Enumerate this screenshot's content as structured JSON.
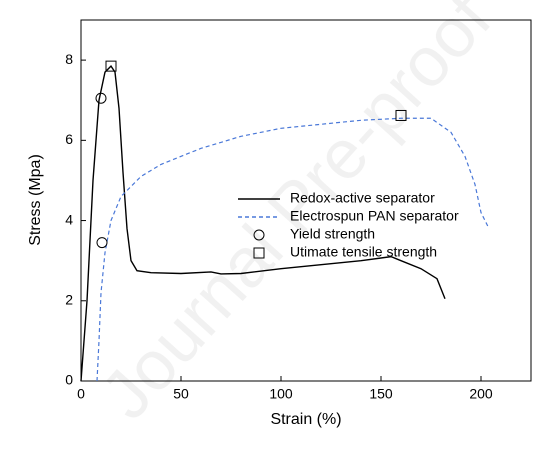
{
  "chart_data": {
    "type": "line",
    "watermark": "Journal Pre-proof",
    "x_label": "Strain (%)",
    "y_label": "Stress (Mpa)",
    "xlim": [
      0,
      225
    ],
    "xticks": [
      0,
      50,
      100,
      150,
      200
    ],
    "ylim": [
      0,
      9
    ],
    "yticks": [
      0,
      2,
      4,
      6,
      8
    ],
    "series": [
      {
        "name": "Redox-active separator",
        "color": "#000000",
        "style": "solid",
        "marker": "none",
        "x": [
          0,
          3,
          6,
          9,
          12,
          15,
          17,
          19,
          21,
          23,
          25,
          28,
          35,
          50,
          65,
          70,
          80,
          100,
          120,
          140,
          155,
          160,
          170,
          178,
          182
        ],
        "values": [
          0,
          2,
          5,
          7,
          7.7,
          7.85,
          7.7,
          6.8,
          5.2,
          3.8,
          3.0,
          2.75,
          2.7,
          2.68,
          2.72,
          2.67,
          2.68,
          2.8,
          2.9,
          3.0,
          3.1,
          3.0,
          2.8,
          2.55,
          2.05
        ]
      },
      {
        "name": "Electrospun PAN separator",
        "color": "#4a78d8",
        "style": "dashed",
        "marker": "none",
        "x": [
          8,
          9,
          10,
          12,
          15,
          20,
          30,
          40,
          60,
          80,
          100,
          120,
          140,
          160,
          175,
          185,
          192,
          197,
          200,
          204
        ],
        "values": [
          0,
          1,
          2.2,
          3.2,
          4,
          4.6,
          5.1,
          5.4,
          5.8,
          6.1,
          6.3,
          6.4,
          6.5,
          6.55,
          6.55,
          6.2,
          5.6,
          4.9,
          4.2,
          3.8
        ]
      },
      {
        "name": "Yield strength",
        "color": "#000000",
        "style": "none",
        "marker": "circle",
        "x": [
          10,
          10.5
        ],
        "values": [
          7.05,
          3.45
        ]
      },
      {
        "name": "Utimate tensile strength",
        "color": "#000000",
        "style": "none",
        "marker": "square",
        "x": [
          15,
          160
        ],
        "values": [
          7.85,
          6.62
        ]
      }
    ]
  }
}
